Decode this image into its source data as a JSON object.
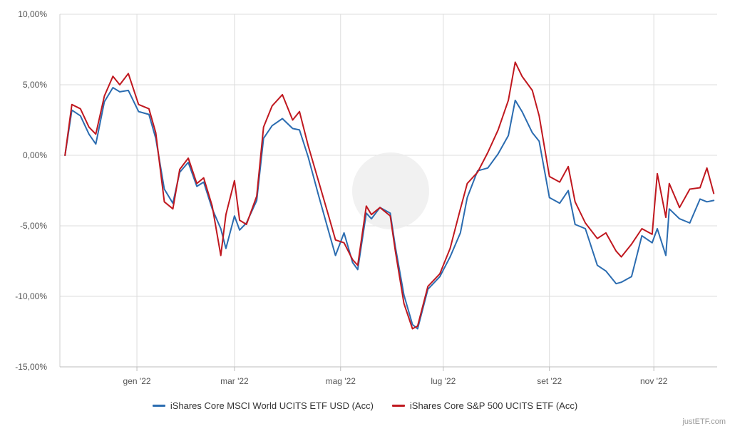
{
  "chart_data": {
    "type": "line",
    "title": "",
    "xlabel": "",
    "ylabel": "",
    "ylim": [
      -15,
      10
    ],
    "y_ticks": [
      {
        "value": 10,
        "label": "10,00%"
      },
      {
        "value": 5,
        "label": "5,00%"
      },
      {
        "value": 0,
        "label": "0,00%"
      },
      {
        "value": -5,
        "label": "-5,00%"
      },
      {
        "value": -10,
        "label": "-10,00%"
      },
      {
        "value": -15,
        "label": "-15,00%"
      }
    ],
    "xlim": [
      "2021-11-19",
      "2022-12-08"
    ],
    "x_ticks": [
      {
        "date": "2022-01-03",
        "label": "gen '22"
      },
      {
        "date": "2022-03-01",
        "label": "mar '22"
      },
      {
        "date": "2022-05-02",
        "label": "mag '22"
      },
      {
        "date": "2022-07-01",
        "label": "lug '22"
      },
      {
        "date": "2022-09-01",
        "label": "set '22"
      },
      {
        "date": "2022-11-01",
        "label": "nov '22"
      }
    ],
    "grid": true,
    "legend_position": "bottom",
    "series": [
      {
        "name": "iShares Core MSCI World UCITS ETF USD (Acc)",
        "color": "#2b6cb0",
        "x": [
          "2021-11-22",
          "2021-11-26",
          "2021-12-01",
          "2021-12-06",
          "2021-12-10",
          "2021-12-15",
          "2021-12-20",
          "2021-12-24",
          "2021-12-29",
          "2022-01-04",
          "2022-01-10",
          "2022-01-14",
          "2022-01-19",
          "2022-01-24",
          "2022-01-28",
          "2022-02-02",
          "2022-02-07",
          "2022-02-11",
          "2022-02-16",
          "2022-02-21",
          "2022-02-24",
          "2022-03-01",
          "2022-03-04",
          "2022-03-08",
          "2022-03-14",
          "2022-03-18",
          "2022-03-23",
          "2022-03-29",
          "2022-04-04",
          "2022-04-08",
          "2022-04-13",
          "2022-04-19",
          "2022-04-25",
          "2022-04-29",
          "2022-05-04",
          "2022-05-09",
          "2022-05-12",
          "2022-05-17",
          "2022-05-20",
          "2022-05-25",
          "2022-05-31",
          "2022-06-03",
          "2022-06-08",
          "2022-06-13",
          "2022-06-16",
          "2022-06-22",
          "2022-06-29",
          "2022-07-05",
          "2022-07-11",
          "2022-07-15",
          "2022-07-21",
          "2022-07-27",
          "2022-08-02",
          "2022-08-08",
          "2022-08-12",
          "2022-08-16",
          "2022-08-22",
          "2022-08-26",
          "2022-09-01",
          "2022-09-07",
          "2022-09-12",
          "2022-09-16",
          "2022-09-22",
          "2022-09-29",
          "2022-10-04",
          "2022-10-10",
          "2022-10-13",
          "2022-10-19",
          "2022-10-25",
          "2022-10-31",
          "2022-11-03",
          "2022-11-08",
          "2022-11-10",
          "2022-11-16",
          "2022-11-22",
          "2022-11-28",
          "2022-12-02",
          "2022-12-06"
        ],
        "y": [
          0.0,
          3.2,
          2.8,
          1.5,
          0.8,
          3.8,
          4.8,
          4.5,
          4.6,
          3.1,
          2.9,
          1.2,
          -2.4,
          -3.4,
          -1.2,
          -0.5,
          -2.2,
          -1.9,
          -3.8,
          -5.2,
          -6.6,
          -4.3,
          -5.3,
          -4.8,
          -3.2,
          1.2,
          2.1,
          2.6,
          1.9,
          1.8,
          -0.1,
          -2.8,
          -5.4,
          -7.1,
          -5.5,
          -7.6,
          -8.1,
          -4.1,
          -4.5,
          -3.7,
          -4.1,
          -6.5,
          -9.9,
          -12.0,
          -12.3,
          -9.5,
          -8.6,
          -7.2,
          -5.5,
          -3.0,
          -1.1,
          -0.9,
          0.1,
          1.4,
          3.9,
          3.1,
          1.6,
          1.0,
          -3.0,
          -3.4,
          -2.5,
          -4.9,
          -5.2,
          -7.8,
          -8.2,
          -9.1,
          -9.0,
          -8.6,
          -5.7,
          -6.2,
          -5.2,
          -7.1,
          -3.8,
          -4.5,
          -4.8,
          -3.1,
          -3.3,
          -3.2
        ]
      },
      {
        "name": "iShares Core S&P 500 UCITS ETF (Acc)",
        "color": "#c0181f",
        "x": [
          "2021-11-22",
          "2021-11-26",
          "2021-12-01",
          "2021-12-06",
          "2021-12-10",
          "2021-12-15",
          "2021-12-20",
          "2021-12-24",
          "2021-12-29",
          "2022-01-04",
          "2022-01-10",
          "2022-01-14",
          "2022-01-19",
          "2022-01-24",
          "2022-01-28",
          "2022-02-02",
          "2022-02-07",
          "2022-02-11",
          "2022-02-16",
          "2022-02-21",
          "2022-02-24",
          "2022-03-01",
          "2022-03-04",
          "2022-03-08",
          "2022-03-14",
          "2022-03-18",
          "2022-03-23",
          "2022-03-29",
          "2022-04-04",
          "2022-04-08",
          "2022-04-13",
          "2022-04-19",
          "2022-04-25",
          "2022-04-29",
          "2022-05-04",
          "2022-05-09",
          "2022-05-12",
          "2022-05-17",
          "2022-05-20",
          "2022-05-25",
          "2022-05-31",
          "2022-06-03",
          "2022-06-08",
          "2022-06-13",
          "2022-06-16",
          "2022-06-22",
          "2022-06-29",
          "2022-07-05",
          "2022-07-11",
          "2022-07-15",
          "2022-07-21",
          "2022-07-27",
          "2022-08-02",
          "2022-08-08",
          "2022-08-12",
          "2022-08-16",
          "2022-08-22",
          "2022-08-26",
          "2022-09-01",
          "2022-09-07",
          "2022-09-12",
          "2022-09-16",
          "2022-09-22",
          "2022-09-29",
          "2022-10-04",
          "2022-10-10",
          "2022-10-13",
          "2022-10-19",
          "2022-10-25",
          "2022-10-31",
          "2022-11-03",
          "2022-11-08",
          "2022-11-10",
          "2022-11-16",
          "2022-11-22",
          "2022-11-28",
          "2022-12-02",
          "2022-12-06"
        ],
        "y": [
          0.0,
          3.6,
          3.3,
          2.0,
          1.5,
          4.2,
          5.6,
          5.0,
          5.8,
          3.6,
          3.3,
          1.6,
          -3.3,
          -3.8,
          -1.0,
          -0.2,
          -2.0,
          -1.6,
          -3.6,
          -7.1,
          -4.2,
          -1.8,
          -4.6,
          -4.9,
          -2.9,
          2.0,
          3.5,
          4.3,
          2.5,
          3.1,
          0.7,
          -1.8,
          -4.3,
          -6.0,
          -6.2,
          -7.4,
          -7.8,
          -3.6,
          -4.2,
          -3.7,
          -4.3,
          -6.8,
          -10.5,
          -12.3,
          -12.1,
          -9.3,
          -8.4,
          -6.6,
          -3.8,
          -2.0,
          -1.2,
          0.2,
          1.8,
          3.9,
          6.6,
          5.6,
          4.6,
          2.8,
          -1.5,
          -1.9,
          -0.8,
          -3.3,
          -4.8,
          -5.9,
          -5.5,
          -6.8,
          -7.2,
          -6.3,
          -5.2,
          -5.6,
          -1.3,
          -4.4,
          -2.0,
          -3.7,
          -2.4,
          -2.3,
          -0.9,
          -2.7
        ]
      }
    ]
  },
  "watermark": "justETF",
  "footer_text": "justETF.com"
}
